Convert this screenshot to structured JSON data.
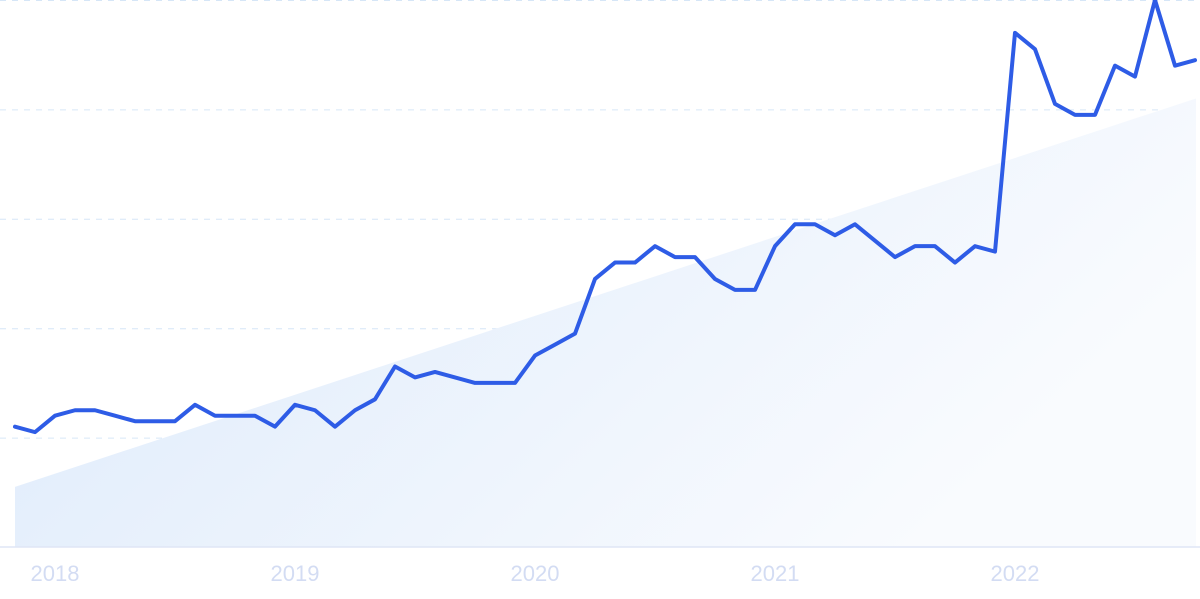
{
  "chart_data": {
    "type": "line",
    "title": "",
    "xlabel": "",
    "ylabel": "",
    "ylim": [
      0,
      100
    ],
    "grid": true,
    "x_tick_labels": [
      "2018",
      "2019",
      "2020",
      "2021",
      "2022"
    ],
    "x": [
      "2017-11",
      "2017-12",
      "2018-01",
      "2018-02",
      "2018-03",
      "2018-04",
      "2018-05",
      "2018-06",
      "2018-07",
      "2018-08",
      "2018-09",
      "2018-10",
      "2018-11",
      "2018-12",
      "2019-01",
      "2019-02",
      "2019-03",
      "2019-04",
      "2019-05",
      "2019-06",
      "2019-07",
      "2019-08",
      "2019-09",
      "2019-10",
      "2019-11",
      "2019-12",
      "2020-01",
      "2020-02",
      "2020-03",
      "2020-04",
      "2020-05",
      "2020-06",
      "2020-07",
      "2020-08",
      "2020-09",
      "2020-10",
      "2020-11",
      "2020-12",
      "2021-01",
      "2021-02",
      "2021-03",
      "2021-04",
      "2021-05",
      "2021-06",
      "2021-07",
      "2021-08",
      "2021-09",
      "2021-10",
      "2021-11",
      "2021-12",
      "2022-01",
      "2022-02",
      "2022-03",
      "2022-04",
      "2022-05",
      "2022-06",
      "2022-07",
      "2022-08",
      "2022-09",
      "2022-10"
    ],
    "series": [
      {
        "values": [
          22,
          21,
          24,
          25,
          25,
          24,
          23,
          23,
          23,
          26,
          24,
          24,
          24,
          22,
          26,
          25,
          22,
          25,
          27,
          33,
          31,
          32,
          31,
          30,
          30,
          30,
          35,
          37,
          39,
          49,
          52,
          52,
          55,
          53,
          53,
          49,
          47,
          47,
          55,
          59,
          59,
          57,
          59,
          56,
          53,
          55,
          55,
          52,
          55,
          54,
          94,
          91,
          81,
          79,
          79,
          88,
          86,
          100,
          88,
          89
        ]
      }
    ],
    "trend": {
      "start": 11,
      "end": 82
    },
    "colors": {
      "line": "#2e5ce6",
      "trend_fill": "#dceafb",
      "grid": "#d6e6f7",
      "tick_text": "#d3dcf3"
    }
  }
}
